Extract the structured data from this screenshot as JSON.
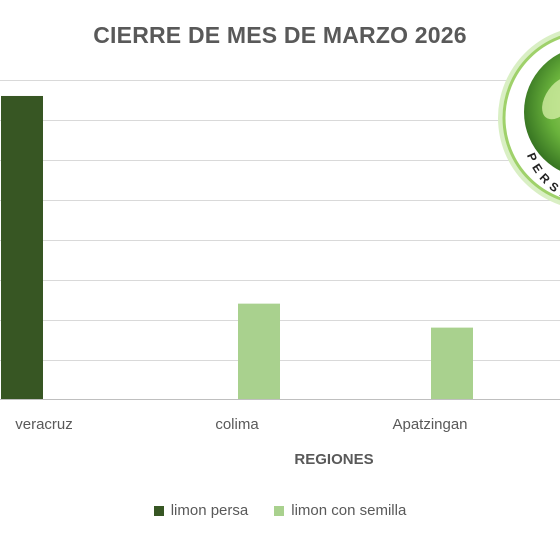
{
  "chart_data": {
    "type": "bar",
    "title": "CIERRE DE MES DE MARZO 2026",
    "xlabel": "REGIONES",
    "ylabel": "",
    "categories": [
      "veracruz",
      "colima",
      "Apatzingan"
    ],
    "series": [
      {
        "name": "limon persa",
        "color": "#375623",
        "values": [
          76,
          0,
          0
        ]
      },
      {
        "name": "limon con semilla",
        "color": "#a9d18e",
        "values": [
          0,
          24,
          18
        ]
      }
    ],
    "ylim": [
      0,
      80
    ],
    "grid": true,
    "legend": "bottom"
  },
  "logo": {
    "icon": "lime-badge-icon",
    "text": "PERSA"
  }
}
